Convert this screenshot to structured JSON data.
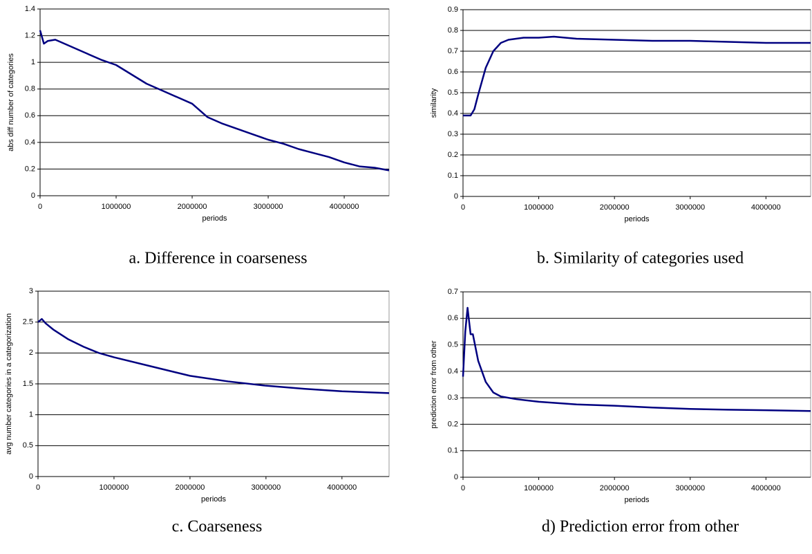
{
  "chart_data": [
    {
      "type": "line",
      "caption": "a. Difference in coarseness",
      "x_label": "periods",
      "y_label": "abs diff number of categories",
      "color": "#000080",
      "grid": true,
      "xlim": [
        0,
        4590000
      ],
      "xticks": [
        0,
        1000000,
        2000000,
        3000000,
        4000000
      ],
      "ylim": [
        0,
        1.4
      ],
      "yticks": [
        0,
        0.2,
        0.4,
        0.6,
        0.8,
        1,
        1.2,
        1.4
      ],
      "x": [
        0,
        50000,
        100000,
        200000,
        400000,
        600000,
        800000,
        1000000,
        1200000,
        1400000,
        1600000,
        1800000,
        2000000,
        2200000,
        2400000,
        2600000,
        2800000,
        3000000,
        3200000,
        3400000,
        3600000,
        3800000,
        4000000,
        4200000,
        4400000,
        4590000
      ],
      "values": [
        1.24,
        1.14,
        1.16,
        1.17,
        1.12,
        1.07,
        1.02,
        0.98,
        0.91,
        0.84,
        0.79,
        0.74,
        0.69,
        0.59,
        0.54,
        0.5,
        0.46,
        0.42,
        0.39,
        0.35,
        0.32,
        0.29,
        0.25,
        0.22,
        0.21,
        0.19
      ]
    },
    {
      "type": "line",
      "caption": "b. Similarity of categories used",
      "x_label": "periods",
      "y_label": "similarity",
      "color": "#000080",
      "grid": true,
      "xlim": [
        0,
        4590000
      ],
      "xticks": [
        0,
        1000000,
        2000000,
        3000000,
        4000000
      ],
      "ylim": [
        0,
        0.9
      ],
      "yticks": [
        0,
        0.1,
        0.2,
        0.3,
        0.4,
        0.5,
        0.6,
        0.7,
        0.8,
        0.9
      ],
      "x": [
        0,
        100000,
        150000,
        200000,
        300000,
        400000,
        500000,
        600000,
        800000,
        1000000,
        1200000,
        1500000,
        2000000,
        2500000,
        3000000,
        3500000,
        4000000,
        4590000
      ],
      "values": [
        0.39,
        0.39,
        0.42,
        0.49,
        0.62,
        0.7,
        0.74,
        0.755,
        0.765,
        0.765,
        0.77,
        0.76,
        0.755,
        0.75,
        0.75,
        0.745,
        0.74,
        0.74
      ]
    },
    {
      "type": "line",
      "caption": "c. Coarseness",
      "x_label": "periods",
      "y_label": "avg number categories in a categorization",
      "color": "#000080",
      "grid": true,
      "xlim": [
        0,
        4620000
      ],
      "xticks": [
        0,
        1000000,
        2000000,
        3000000,
        4000000
      ],
      "ylim": [
        0,
        3
      ],
      "yticks": [
        0,
        0.5,
        1,
        1.5,
        2,
        2.5,
        3
      ],
      "x": [
        0,
        50000,
        100000,
        200000,
        400000,
        600000,
        800000,
        1000000,
        1500000,
        2000000,
        2500000,
        3000000,
        3500000,
        4000000,
        4620000
      ],
      "values": [
        2.5,
        2.55,
        2.48,
        2.38,
        2.22,
        2.1,
        2.0,
        1.93,
        1.78,
        1.63,
        1.54,
        1.47,
        1.42,
        1.38,
        1.35
      ]
    },
    {
      "type": "line",
      "caption": "d) Prediction error from other",
      "x_label": "periods",
      "y_label": "prediction error from other",
      "color": "#000080",
      "grid": true,
      "xlim": [
        0,
        4590000
      ],
      "xticks": [
        0,
        1000000,
        2000000,
        3000000,
        4000000
      ],
      "ylim": [
        0,
        0.7
      ],
      "yticks": [
        0,
        0.1,
        0.2,
        0.3,
        0.4,
        0.5,
        0.6,
        0.7
      ],
      "x": [
        0,
        30000,
        60000,
        100000,
        130000,
        200000,
        300000,
        400000,
        500000,
        700000,
        1000000,
        1500000,
        2000000,
        2500000,
        3000000,
        3500000,
        4000000,
        4590000
      ],
      "values": [
        0.38,
        0.55,
        0.64,
        0.54,
        0.54,
        0.44,
        0.36,
        0.32,
        0.305,
        0.295,
        0.285,
        0.275,
        0.27,
        0.263,
        0.258,
        0.255,
        0.253,
        0.25
      ]
    }
  ]
}
